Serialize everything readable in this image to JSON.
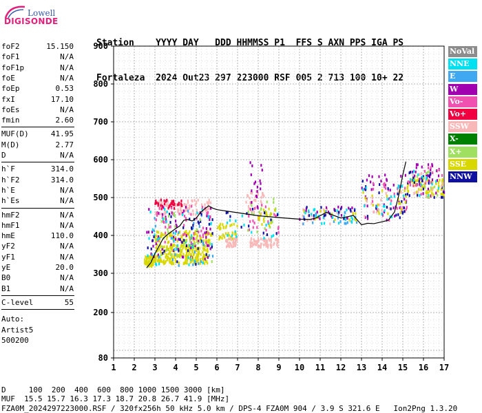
{
  "logo": {
    "line1": "Lowell",
    "line2": "DIGISONDE"
  },
  "header": {
    "line1": "Station    YYYY DAY   DDD HHMMSS P1  FFS S AXN PPS IGA PS",
    "line2": "Fortaleza  2024 Out23 297 223000 RSF 005 2 713 100 10+ 22"
  },
  "params_groups": [
    [
      [
        "foF2",
        "15.150"
      ],
      [
        "foF1",
        "N/A"
      ],
      [
        "foF1p",
        "N/A"
      ],
      [
        "foE",
        "N/A"
      ],
      [
        "foEp",
        "0.53"
      ],
      [
        "fxI",
        "17.10"
      ],
      [
        "foEs",
        "N/A"
      ],
      [
        "fmin",
        "2.60"
      ]
    ],
    [
      [
        "MUF(D)",
        "41.95"
      ],
      [
        "M(D)",
        "2.77"
      ],
      [
        "D",
        "N/A"
      ]
    ],
    [
      [
        "h`F",
        "314.0"
      ],
      [
        "h`F2",
        "314.0"
      ],
      [
        "h`E",
        "N/A"
      ],
      [
        "h`Es",
        "N/A"
      ]
    ],
    [
      [
        "hmF2",
        "N/A"
      ],
      [
        "hmF1",
        "N/A"
      ],
      [
        "hmE",
        "110.0"
      ],
      [
        "yF2",
        "N/A"
      ],
      [
        "yF1",
        "N/A"
      ],
      [
        "yE",
        "20.0"
      ],
      [
        "B0",
        "N/A"
      ],
      [
        "B1",
        "N/A"
      ]
    ],
    [
      [
        "C-level",
        "55"
      ]
    ]
  ],
  "auto_notes": [
    "Auto:",
    "Artist5",
    "500200"
  ],
  "footer": {
    "line1": "D     100  200  400  600  800 1000 1500 3000 [km]",
    "line2": "MUF  15.5 15.7 16.3 17.3 18.7 20.8 26.7 41.9 [MHz]",
    "line3": "FZA0M_2024297223000.RSF / 320fx256h 50 kHz 5.0 km / DPS-4 FZA0M 904 / 3.9 S 321.6 E   Ion2Png 1.3.20"
  },
  "legend": [
    {
      "label": "NoVal",
      "color": "#8c8c8c"
    },
    {
      "label": "NNE",
      "color": "#00e0f0"
    },
    {
      "label": "E",
      "color": "#40a8f0"
    },
    {
      "label": "W",
      "color": "#a000b0"
    },
    {
      "label": "Vo-",
      "color": "#f050b0"
    },
    {
      "label": "Vo+",
      "color": "#f00040"
    },
    {
      "label": "SSW",
      "color": "#f8b8b8"
    },
    {
      "label": "X-",
      "color": "#008000"
    },
    {
      "label": "X+",
      "color": "#a0e060"
    },
    {
      "label": "SSE",
      "color": "#d8d800"
    },
    {
      "label": "NNW",
      "color": "#1010a0"
    }
  ],
  "chart_data": {
    "type": "scatter",
    "xlim": [
      1,
      17
    ],
    "ylim": [
      80,
      900
    ],
    "x_ticks": [
      "1",
      "2",
      "3",
      "4",
      "5",
      "6",
      "7",
      "8",
      "9",
      "10",
      "11",
      "12",
      "13",
      "14",
      "15",
      "16",
      "17"
    ],
    "y_ticks": [
      "80",
      "200",
      "300",
      "400",
      "500",
      "600",
      "700",
      "800",
      "900"
    ],
    "grid": true,
    "legend_position": "right",
    "trace": {
      "x": [
        2.6,
        2.8,
        3.0,
        3.2,
        3.4,
        3.6,
        3.8,
        4.0,
        4.2,
        4.4,
        4.6,
        4.8,
        5.0,
        5.2,
        5.4,
        5.6,
        5.8,
        6.0,
        7.0,
        8.0,
        9.0,
        10.0,
        10.5,
        10.8,
        11.0,
        11.3,
        11.6,
        12.0,
        12.3,
        12.6,
        13.0,
        13.3,
        13.6,
        14.0,
        14.3,
        14.6,
        14.8,
        15.0,
        15.15
      ],
      "y": [
        314,
        328,
        352,
        372,
        392,
        402,
        410,
        418,
        425,
        440,
        442,
        438,
        446,
        460,
        470,
        478,
        472,
        468,
        460,
        452,
        447,
        443,
        442,
        446,
        452,
        461,
        454,
        446,
        449,
        453,
        428,
        432,
        431,
        436,
        440,
        462,
        505,
        560,
        595
      ]
    },
    "clusters": [
      {
        "series": "SSE",
        "x": [
          2.5,
          3.0
        ],
        "y": [
          318,
          345
        ],
        "n": 60
      },
      {
        "series": "SSE",
        "x": [
          3.0,
          5.6
        ],
        "y": [
          325,
          375
        ],
        "n": 240
      },
      {
        "series": "SSE",
        "x": [
          3.0,
          5.8
        ],
        "y": [
          380,
          412
        ],
        "n": 90
      },
      {
        "series": "SSW",
        "x": [
          3.0,
          5.7
        ],
        "y": [
          455,
          495
        ],
        "n": 90
      },
      {
        "series": "Vo+",
        "x": [
          3.0,
          4.4
        ],
        "y": [
          470,
          495
        ],
        "n": 35
      },
      {
        "series": "W",
        "x": [
          2.6,
          5.8
        ],
        "y": [
          330,
          480
        ],
        "n": 60
      },
      {
        "series": "Vo-",
        "x": [
          3.0,
          5.8
        ],
        "y": [
          380,
          480
        ],
        "n": 50
      },
      {
        "series": "NNE",
        "x": [
          2.6,
          5.8
        ],
        "y": [
          320,
          470
        ],
        "n": 40
      },
      {
        "series": "E",
        "x": [
          2.6,
          5.8
        ],
        "y": [
          320,
          470
        ],
        "n": 30
      },
      {
        "series": "NNW",
        "x": [
          2.6,
          5.8
        ],
        "y": [
          320,
          470
        ],
        "n": 35
      },
      {
        "series": "X+",
        "x": [
          2.8,
          5.8
        ],
        "y": [
          330,
          470
        ],
        "n": 30
      },
      {
        "series": "SSE",
        "x": [
          6.0,
          7.0
        ],
        "y": [
          390,
          430
        ],
        "n": 40
      },
      {
        "series": "SSW",
        "x": [
          6.4,
          7.0
        ],
        "y": [
          370,
          392
        ],
        "n": 35
      },
      {
        "series": "SSW",
        "x": [
          7.6,
          9.0
        ],
        "y": [
          368,
          392
        ],
        "n": 70
      },
      {
        "series": "SSW",
        "x": [
          7.4,
          8.3
        ],
        "y": [
          455,
          520
        ],
        "n": 30
      },
      {
        "series": "W",
        "x": [
          7.6,
          8.3
        ],
        "y": [
          470,
          610
        ],
        "n": 18
      },
      {
        "series": "Vo-",
        "x": [
          7.5,
          9.0
        ],
        "y": [
          400,
          480
        ],
        "n": 25
      },
      {
        "series": "X+",
        "x": [
          7.5,
          9.0
        ],
        "y": [
          400,
          500
        ],
        "n": 22
      },
      {
        "series": "NNE",
        "x": [
          6.2,
          9.0
        ],
        "y": [
          390,
          470
        ],
        "n": 16
      },
      {
        "series": "NNW",
        "x": [
          6.2,
          9.0
        ],
        "y": [
          400,
          470
        ],
        "n": 14
      },
      {
        "series": "SSE",
        "x": [
          8.0,
          9.0
        ],
        "y": [
          425,
          470
        ],
        "n": 20
      },
      {
        "series": "SSW",
        "x": [
          10.0,
          12.6
        ],
        "y": [
          430,
          470
        ],
        "n": 25
      },
      {
        "series": "W",
        "x": [
          10.0,
          12.8
        ],
        "y": [
          440,
          475
        ],
        "n": 22
      },
      {
        "series": "NNE",
        "x": [
          10.2,
          12.8
        ],
        "y": [
          430,
          470
        ],
        "n": 25
      },
      {
        "series": "E",
        "x": [
          10.0,
          12.8
        ],
        "y": [
          430,
          470
        ],
        "n": 18
      },
      {
        "series": "NNW",
        "x": [
          10.0,
          12.8
        ],
        "y": [
          440,
          475
        ],
        "n": 15
      },
      {
        "series": "SSE",
        "x": [
          10.0,
          12.8
        ],
        "y": [
          440,
          470
        ],
        "n": 12
      },
      {
        "series": "W",
        "x": [
          13.0,
          15.2
        ],
        "y": [
          430,
          560
        ],
        "n": 35
      },
      {
        "series": "Vo-",
        "x": [
          13.0,
          15.2
        ],
        "y": [
          440,
          540
        ],
        "n": 25
      },
      {
        "series": "NNW",
        "x": [
          13.0,
          15.2
        ],
        "y": [
          440,
          560
        ],
        "n": 25
      },
      {
        "series": "NNE",
        "x": [
          13.0,
          15.2
        ],
        "y": [
          440,
          540
        ],
        "n": 20
      },
      {
        "series": "SSE",
        "x": [
          13.0,
          15.2
        ],
        "y": [
          450,
          520
        ],
        "n": 20
      },
      {
        "series": "SSW",
        "x": [
          13.0,
          15.0
        ],
        "y": [
          440,
          520
        ],
        "n": 15
      },
      {
        "series": "SSE",
        "x": [
          15.2,
          17.0
        ],
        "y": [
          505,
          550
        ],
        "n": 70
      },
      {
        "series": "W",
        "x": [
          15.2,
          17.0
        ],
        "y": [
          500,
          590
        ],
        "n": 30
      },
      {
        "series": "NNW",
        "x": [
          15.2,
          17.0
        ],
        "y": [
          500,
          590
        ],
        "n": 25
      },
      {
        "series": "Vo-",
        "x": [
          15.2,
          17.0
        ],
        "y": [
          500,
          580
        ],
        "n": 20
      },
      {
        "series": "NNE",
        "x": [
          15.2,
          17.0
        ],
        "y": [
          500,
          570
        ],
        "n": 14
      },
      {
        "series": "SSW",
        "x": [
          15.2,
          17.0
        ],
        "y": [
          500,
          580
        ],
        "n": 12
      },
      {
        "series": "X+",
        "x": [
          15.2,
          17.0
        ],
        "y": [
          500,
          570
        ],
        "n": 12
      }
    ]
  }
}
